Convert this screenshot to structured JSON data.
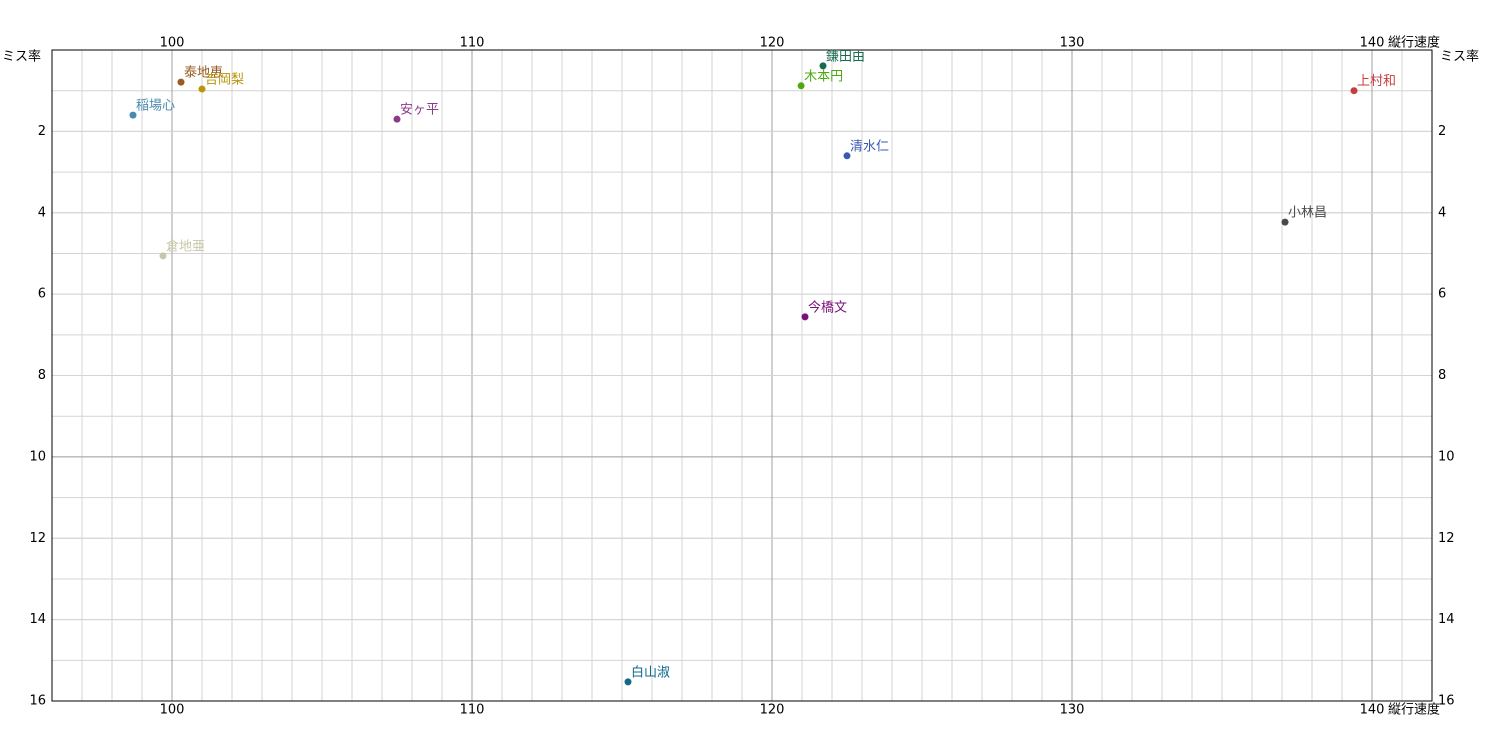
{
  "chart_data": {
    "type": "scatter",
    "x_label": "縦行速度",
    "y_label": "ミス率",
    "xlim": [
      96,
      142
    ],
    "xticks": [
      100,
      110,
      120,
      130,
      140
    ],
    "ylim": [
      0,
      16
    ],
    "yticks": [
      2,
      4,
      6,
      8,
      10,
      12,
      14,
      16
    ],
    "y_inverted": true,
    "grid": true,
    "minor_grid": true,
    "series": [
      {
        "name": "鎌田由",
        "color": "#1a6a50",
        "x": [
          121.7
        ],
        "y": [
          0.39
        ]
      },
      {
        "name": "泰地恵",
        "color": "#9a5a20",
        "x": [
          100.3
        ],
        "y": [
          0.79
        ]
      },
      {
        "name": "吉岡梨",
        "color": "#b8960c",
        "x": [
          101.0
        ],
        "y": [
          0.96
        ]
      },
      {
        "name": "木本円",
        "color": "#4aaa10",
        "x": [
          120.97
        ],
        "y": [
          0.88
        ]
      },
      {
        "name": "上村和",
        "color": "#c83c3c",
        "x": [
          139.4
        ],
        "y": [
          1.0
        ]
      },
      {
        "name": "稲場心",
        "color": "#4a8ab0",
        "x": [
          98.7
        ],
        "y": [
          1.6
        ]
      },
      {
        "name": "安ヶ平",
        "color": "#8a3a8a",
        "x": [
          107.5
        ],
        "y": [
          1.7
        ]
      },
      {
        "name": "清水仁",
        "color": "#3a5ab0",
        "x": [
          122.5
        ],
        "y": [
          2.6
        ]
      },
      {
        "name": "小林昌",
        "color": "#4a4a4a",
        "x": [
          137.1
        ],
        "y": [
          4.23
        ]
      },
      {
        "name": "倉地亜",
        "color": "#c8c8a8",
        "x": [
          99.7
        ],
        "y": [
          5.06
        ]
      },
      {
        "name": "今橋文",
        "color": "#7a107a",
        "x": [
          121.1
        ],
        "y": [
          6.56
        ]
      },
      {
        "name": "白山淑",
        "color": "#106a8a",
        "x": [
          115.2
        ],
        "y": [
          15.53
        ]
      }
    ]
  }
}
